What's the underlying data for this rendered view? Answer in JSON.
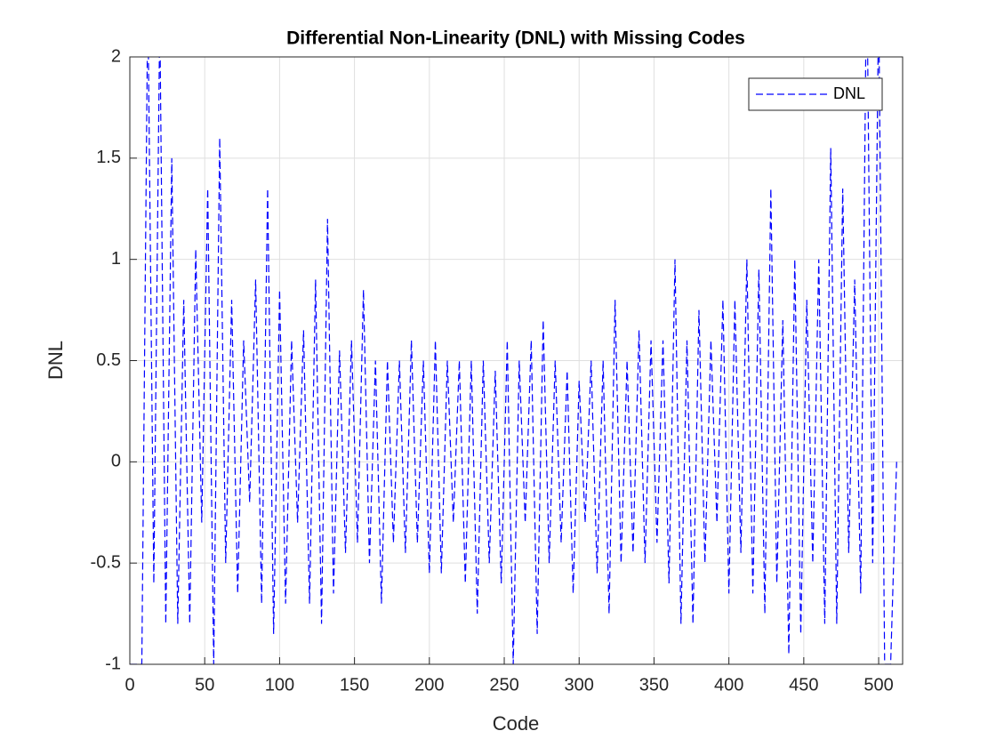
{
  "chart_data": {
    "type": "line",
    "title": "Differential Non-Linearity (DNL) with Missing Codes",
    "xlabel": "Code",
    "ylabel": "DNL",
    "x": [
      0,
      4,
      8,
      12,
      16,
      20,
      24,
      28,
      32,
      36,
      40,
      44,
      48,
      52,
      56,
      60,
      64,
      68,
      72,
      76,
      80,
      84,
      88,
      92,
      96,
      100,
      104,
      108,
      112,
      116,
      120,
      124,
      128,
      132,
      136,
      140,
      144,
      148,
      152,
      156,
      160,
      164,
      168,
      172,
      176,
      180,
      184,
      188,
      192,
      196,
      200,
      204,
      208,
      212,
      216,
      220,
      224,
      228,
      232,
      236,
      240,
      244,
      248,
      252,
      256,
      260,
      264,
      268,
      272,
      276,
      280,
      284,
      288,
      292,
      296,
      300,
      304,
      308,
      312,
      316,
      320,
      324,
      328,
      332,
      336,
      340,
      344,
      348,
      352,
      356,
      360,
      364,
      368,
      372,
      376,
      380,
      384,
      388,
      392,
      396,
      400,
      404,
      408,
      412,
      416,
      420,
      424,
      428,
      432,
      436,
      440,
      444,
      448,
      452,
      456,
      460,
      464,
      468,
      472,
      476,
      480,
      484,
      488,
      492,
      496,
      500,
      504,
      508,
      512
    ],
    "series": [
      {
        "name": "DNL",
        "color": "#0000ff",
        "dash": "8,4",
        "values": [
          -1,
          -1,
          -1,
          2.3,
          -0.6,
          2.2,
          -0.8,
          1.5,
          -0.8,
          0.8,
          -0.8,
          1.05,
          -0.3,
          1.35,
          -1,
          1.6,
          -0.5,
          0.8,
          -0.65,
          0.6,
          -0.2,
          0.9,
          -0.7,
          1.35,
          -0.85,
          0.85,
          -0.7,
          0.6,
          -0.3,
          0.65,
          -0.7,
          0.9,
          -0.8,
          1.2,
          -0.65,
          0.55,
          -0.45,
          0.6,
          -0.4,
          0.85,
          -0.5,
          0.5,
          -0.7,
          0.5,
          -0.4,
          0.5,
          -0.45,
          0.6,
          -0.4,
          0.5,
          -0.55,
          0.6,
          -0.55,
          0.5,
          -0.3,
          0.5,
          -0.6,
          0.5,
          -0.75,
          0.5,
          -0.5,
          0.45,
          -0.6,
          0.6,
          -1,
          0.5,
          -0.3,
          0.6,
          -0.85,
          0.7,
          -0.5,
          0.5,
          -0.4,
          0.45,
          -0.65,
          0.4,
          -0.3,
          0.5,
          -0.55,
          0.5,
          -0.75,
          0.8,
          -0.5,
          0.5,
          -0.45,
          0.65,
          -0.5,
          0.6,
          -0.4,
          0.6,
          -0.6,
          1.0,
          -0.8,
          0.6,
          -0.8,
          0.75,
          -0.5,
          0.6,
          -0.3,
          0.8,
          -0.65,
          0.8,
          -0.45,
          1.0,
          -0.65,
          0.95,
          -0.75,
          1.35,
          -0.6,
          0.7,
          -0.95,
          1.0,
          -0.85,
          0.8,
          -0.5,
          1.0,
          -0.8,
          1.55,
          -0.8,
          1.35,
          -0.45,
          0.9,
          -0.65,
          2.5,
          -0.5,
          2.3,
          -1,
          -1,
          0
        ]
      }
    ],
    "xlim": [
      0,
      516
    ],
    "ylim": [
      -1,
      2
    ],
    "xticks": [
      0,
      50,
      100,
      150,
      200,
      250,
      300,
      350,
      400,
      450,
      500
    ],
    "yticks": [
      -1,
      -0.5,
      0,
      0.5,
      1,
      1.5,
      2
    ],
    "grid": true,
    "legend": "northeast"
  }
}
